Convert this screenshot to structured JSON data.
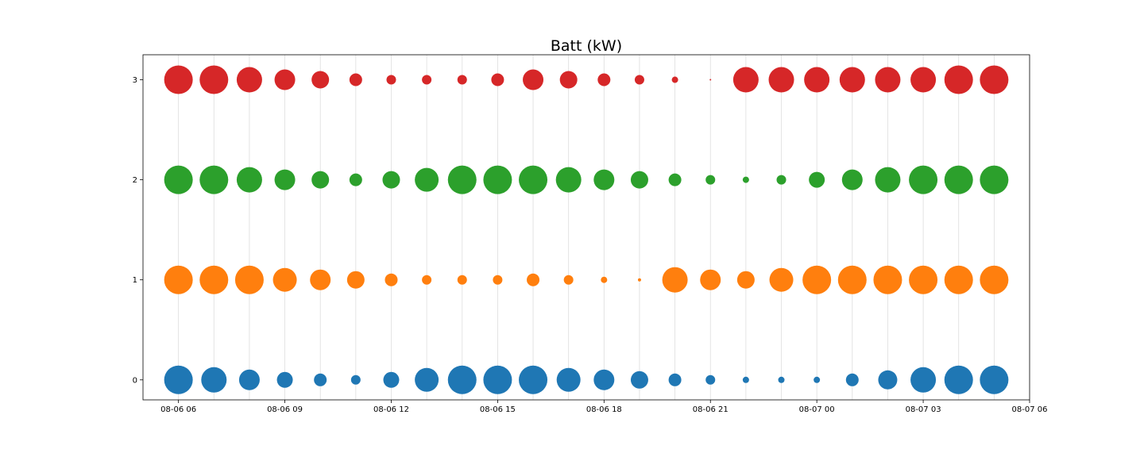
{
  "chart_data": {
    "type": "scatter",
    "title": "Batt (kW)",
    "xlabel": "",
    "ylabel": "",
    "x": [
      "08-06 06",
      "08-06 07",
      "08-06 08",
      "08-06 09",
      "08-06 10",
      "08-06 11",
      "08-06 12",
      "08-06 13",
      "08-06 14",
      "08-06 15",
      "08-06 16",
      "08-06 17",
      "08-06 18",
      "08-06 19",
      "08-06 20",
      "08-06 21",
      "08-06 22",
      "08-06 23",
      "08-07 00",
      "08-07 01",
      "08-07 02",
      "08-07 03",
      "08-07 04",
      "08-07 05"
    ],
    "x_tick_labels": [
      "08-06 06",
      "08-06 09",
      "08-06 12",
      "08-06 15",
      "08-06 18",
      "08-06 21",
      "08-07 00",
      "08-07 03",
      "08-07 06"
    ],
    "xlim": [
      "08-06 05",
      "08-07 06"
    ],
    "y_ticks": [
      "0",
      "1",
      "2",
      "3"
    ],
    "ylim": [
      -0.2,
      3.25
    ],
    "grid": "vertical",
    "series": [
      {
        "y": 0,
        "color": "#1f77b4",
        "values": [
          18,
          16,
          13,
          10,
          8,
          6,
          10,
          15,
          18,
          18,
          18,
          15,
          13,
          11,
          8,
          6,
          4,
          4,
          4,
          8,
          12,
          16,
          18,
          18
        ]
      },
      {
        "y": 1,
        "color": "#ff7f0e",
        "values": [
          18,
          18,
          18,
          15,
          13,
          11,
          8,
          6,
          6,
          6,
          8,
          6,
          4,
          2,
          16,
          13,
          11,
          15,
          18,
          18,
          18,
          18,
          18,
          18
        ]
      },
      {
        "y": 2,
        "color": "#2ca02c",
        "values": [
          18,
          18,
          16,
          13,
          11,
          8,
          11,
          15,
          18,
          18,
          18,
          16,
          13,
          11,
          8,
          6,
          4,
          6,
          10,
          13,
          16,
          18,
          18,
          18
        ]
      },
      {
        "y": 3,
        "color": "#d62728",
        "values": [
          18,
          18,
          16,
          13,
          11,
          8,
          6,
          6,
          6,
          8,
          13,
          11,
          8,
          6,
          4,
          1,
          16,
          16,
          16,
          16,
          16,
          16,
          18,
          18
        ]
      }
    ]
  }
}
